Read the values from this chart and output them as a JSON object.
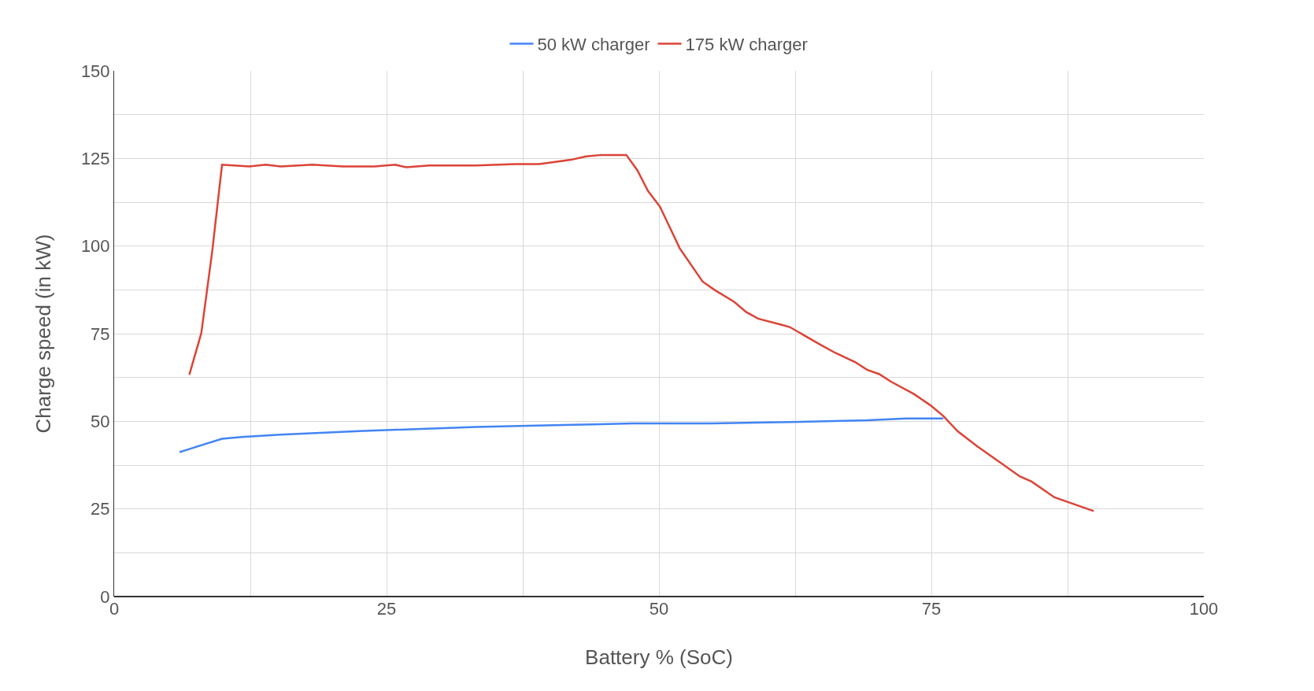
{
  "chart_data": {
    "type": "line",
    "xlabel": "Battery % (SoC)",
    "ylabel": "Charge speed (in kW)",
    "xlim": [
      0,
      100
    ],
    "ylim": [
      0,
      150
    ],
    "xticks": [
      0,
      {
        "value": 12.5,
        "label": null
      },
      25,
      {
        "value": 37.5,
        "label": null
      },
      50,
      {
        "value": 62.5,
        "label": null
      },
      75,
      {
        "value": 87.5,
        "label": null
      },
      100
    ],
    "yticks": [
      0,
      {
        "value": 12.5,
        "label": null
      },
      25,
      {
        "value": 37.5,
        "label": null
      },
      50,
      {
        "value": 62.5,
        "label": null
      },
      75,
      {
        "value": 87.5,
        "label": null
      },
      100,
      {
        "value": 112.5,
        "label": null
      },
      125,
      {
        "value": 137.5,
        "label": null
      },
      150
    ],
    "grid": true,
    "legend": "top",
    "marker": "none",
    "line_style": "solid",
    "series": [
      {
        "name": "50 kW charger",
        "color": "#4285f4",
        "x": [
          6,
          7,
          9.9,
          11.7,
          15.3,
          22.5,
          33.2,
          40.4,
          47.6,
          54.8,
          62,
          69.1,
          72.7,
          76.1
        ],
        "values": [
          41.2,
          42.2,
          45,
          45.5,
          46.2,
          47.2,
          48.4,
          48.9,
          49.4,
          49.4,
          49.8,
          50.3,
          50.8,
          50.8
        ]
      },
      {
        "name": "175 kW charger",
        "color": "#db4437",
        "x": [
          6.9,
          8,
          9,
          9.9,
          11,
          12.4,
          13.9,
          15.3,
          18.2,
          21,
          23.9,
          25.8,
          26.8,
          28.9,
          33.2,
          36.8,
          39,
          41.9,
          43.3,
          44.7,
          47,
          48,
          49,
          50.1,
          51.9,
          54,
          55.1,
          56.9,
          58,
          59.1,
          61.2,
          62,
          64.8,
          66.2,
          68,
          69.1,
          70.2,
          71.3,
          73.4,
          74.9,
          76.1,
          77.4,
          79.2,
          81.3,
          83.1,
          84.2,
          86.3,
          89.9
        ],
        "values": [
          63.3,
          75.2,
          98.5,
          123.2,
          123,
          122.7,
          123.2,
          122.7,
          123.2,
          122.7,
          122.7,
          123.2,
          122.5,
          123,
          123,
          123.4,
          123.4,
          124.6,
          125.6,
          126,
          126,
          121.7,
          115.7,
          111.2,
          99.4,
          89.9,
          87.5,
          84.1,
          81.2,
          79.3,
          77.6,
          76.9,
          71.9,
          69.5,
          66.9,
          64.7,
          63.5,
          61.3,
          57.8,
          54.6,
          51.5,
          47.2,
          42.9,
          38.3,
          34.3,
          32.8,
          28.3,
          24.4
        ]
      }
    ]
  }
}
